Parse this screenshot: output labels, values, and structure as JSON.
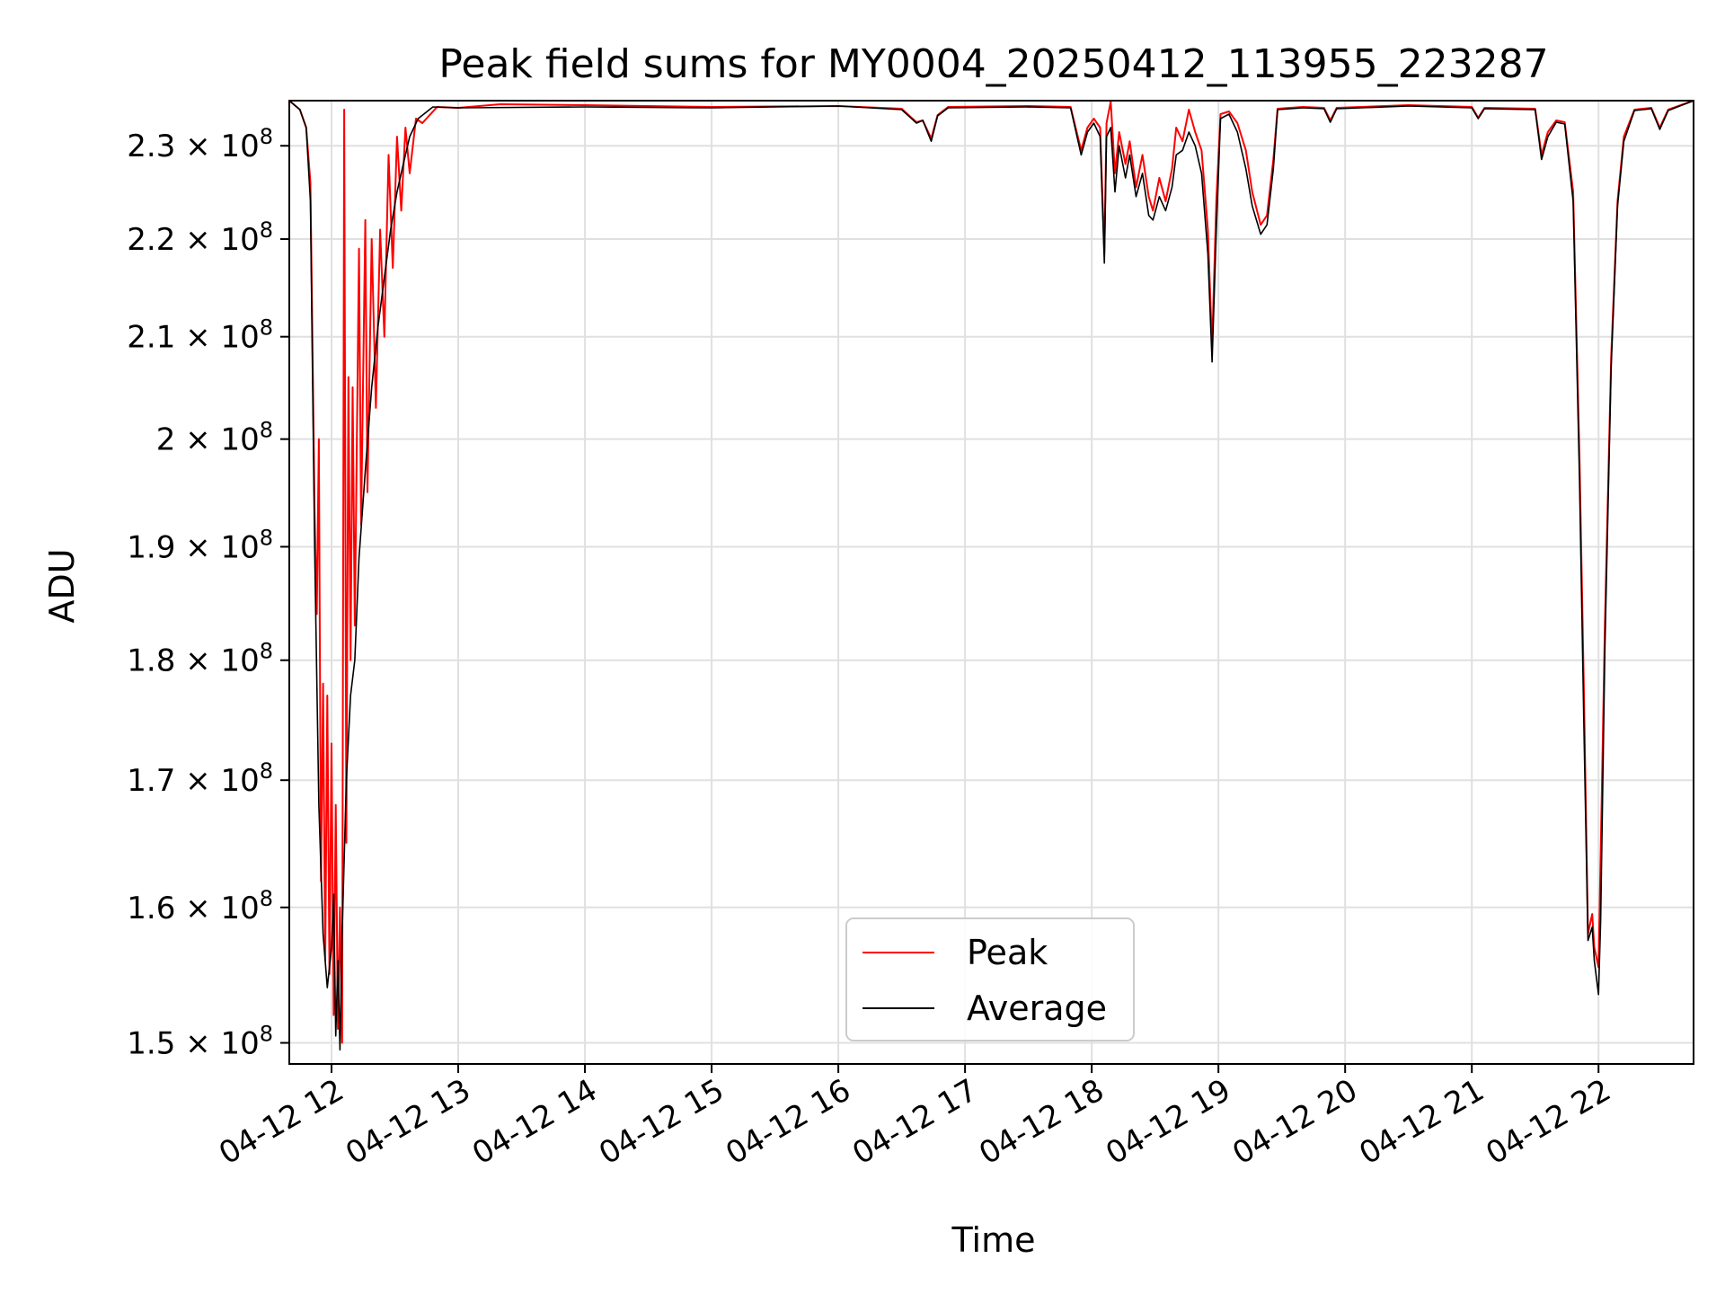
{
  "chart_data": {
    "type": "line",
    "title": "Peak field sums for MY0004_20250412_113955_223287",
    "xlabel": "Time",
    "ylabel": "ADU",
    "yscale": "log",
    "xlim": [
      "2025-04-12 11:40",
      "2025-04-12 22:45"
    ],
    "ylim": [
      148500000,
      235000000
    ],
    "x_ticks": [
      {
        "t": "2025-04-12 12:00",
        "label": "04-12 12"
      },
      {
        "t": "2025-04-12 13:00",
        "label": "04-12 13"
      },
      {
        "t": "2025-04-12 14:00",
        "label": "04-12 14"
      },
      {
        "t": "2025-04-12 15:00",
        "label": "04-12 15"
      },
      {
        "t": "2025-04-12 16:00",
        "label": "04-12 16"
      },
      {
        "t": "2025-04-12 17:00",
        "label": "04-12 17"
      },
      {
        "t": "2025-04-12 18:00",
        "label": "04-12 18"
      },
      {
        "t": "2025-04-12 19:00",
        "label": "04-12 19"
      },
      {
        "t": "2025-04-12 20:00",
        "label": "04-12 20"
      },
      {
        "t": "2025-04-12 21:00",
        "label": "04-12 21"
      },
      {
        "t": "2025-04-12 22:00",
        "label": "04-12 22"
      }
    ],
    "y_ticks": [
      {
        "v": 150000000,
        "mant": "1.5",
        "exp": "8"
      },
      {
        "v": 160000000,
        "mant": "1.6",
        "exp": "8"
      },
      {
        "v": 170000000,
        "mant": "1.7",
        "exp": "8"
      },
      {
        "v": 180000000,
        "mant": "1.8",
        "exp": "8"
      },
      {
        "v": 190000000,
        "mant": "1.9",
        "exp": "8"
      },
      {
        "v": 200000000,
        "mant": "2",
        "exp": "8"
      },
      {
        "v": 210000000,
        "mant": "2.1",
        "exp": "8"
      },
      {
        "v": 220000000,
        "mant": "2.2",
        "exp": "8"
      },
      {
        "v": 230000000,
        "mant": "2.3",
        "exp": "8"
      }
    ],
    "grid": true,
    "legend": {
      "position": "lower center"
    },
    "series": [
      {
        "name": "Peak",
        "color": "#ff0000",
        "points": [
          [
            "2025-04-12 11:40",
            235000000
          ],
          [
            "2025-04-12 11:45",
            234000000
          ],
          [
            "2025-04-12 11:48",
            232000000
          ],
          [
            "2025-04-12 11:50",
            226000000
          ],
          [
            "2025-04-12 11:52",
            193000000
          ],
          [
            "2025-04-12 11:53",
            184000000
          ],
          [
            "2025-04-12 11:54",
            200000000
          ],
          [
            "2025-04-12 11:55",
            162000000
          ],
          [
            "2025-04-12 11:56",
            178000000
          ],
          [
            "2025-04-12 11:57",
            156000000
          ],
          [
            "2025-04-12 11:58",
            177000000
          ],
          [
            "2025-04-12 11:59",
            155000000
          ],
          [
            "2025-04-12 12:00",
            173000000
          ],
          [
            "2025-04-12 12:01",
            152000000
          ],
          [
            "2025-04-12 12:02",
            168000000
          ],
          [
            "2025-04-12 12:03",
            151000000
          ],
          [
            "2025-04-12 12:04",
            160000000
          ],
          [
            "2025-04-12 12:05",
            150000000
          ],
          [
            "2025-04-12 12:06",
            234000000
          ],
          [
            "2025-04-12 12:07",
            165000000
          ],
          [
            "2025-04-12 12:08",
            206000000
          ],
          [
            "2025-04-12 12:09",
            180000000
          ],
          [
            "2025-04-12 12:10",
            205000000
          ],
          [
            "2025-04-12 12:11",
            183000000
          ],
          [
            "2025-04-12 12:13",
            219000000
          ],
          [
            "2025-04-12 12:14",
            192000000
          ],
          [
            "2025-04-12 12:16",
            222000000
          ],
          [
            "2025-04-12 12:17",
            195000000
          ],
          [
            "2025-04-12 12:19",
            220000000
          ],
          [
            "2025-04-12 12:21",
            203000000
          ],
          [
            "2025-04-12 12:23",
            221000000
          ],
          [
            "2025-04-12 12:25",
            210000000
          ],
          [
            "2025-04-12 12:27",
            229000000
          ],
          [
            "2025-04-12 12:29",
            217000000
          ],
          [
            "2025-04-12 12:31",
            231000000
          ],
          [
            "2025-04-12 12:33",
            223000000
          ],
          [
            "2025-04-12 12:35",
            232000000
          ],
          [
            "2025-04-12 12:37",
            227000000
          ],
          [
            "2025-04-12 12:40",
            233000000
          ],
          [
            "2025-04-12 12:43",
            232500000
          ],
          [
            "2025-04-12 12:50",
            234300000
          ],
          [
            "2025-04-12 13:00",
            234200000
          ],
          [
            "2025-04-12 13:20",
            234600000
          ],
          [
            "2025-04-12 14:00",
            234500000
          ],
          [
            "2025-04-12 15:00",
            234300000
          ],
          [
            "2025-04-12 16:00",
            234400000
          ],
          [
            "2025-04-12 16:30",
            234100000
          ],
          [
            "2025-04-12 16:37",
            232600000
          ],
          [
            "2025-04-12 16:40",
            232800000
          ],
          [
            "2025-04-12 16:44",
            230800000
          ],
          [
            "2025-04-12 16:47",
            233400000
          ],
          [
            "2025-04-12 16:52",
            234300000
          ],
          [
            "2025-04-12 17:30",
            234400000
          ],
          [
            "2025-04-12 17:50",
            234300000
          ],
          [
            "2025-04-12 17:55",
            229500000
          ],
          [
            "2025-04-12 17:58",
            232000000
          ],
          [
            "2025-04-12 18:01",
            233000000
          ],
          [
            "2025-04-12 18:04",
            232000000
          ],
          [
            "2025-04-12 18:06",
            218500000
          ],
          [
            "2025-04-12 18:07",
            232500000
          ],
          [
            "2025-04-12 18:09",
            234900000
          ],
          [
            "2025-04-12 18:11",
            227000000
          ],
          [
            "2025-04-12 18:13",
            231500000
          ],
          [
            "2025-04-12 18:16",
            228000000
          ],
          [
            "2025-04-12 18:18",
            230500000
          ],
          [
            "2025-04-12 18:21",
            225500000
          ],
          [
            "2025-04-12 18:24",
            229000000
          ],
          [
            "2025-04-12 18:27",
            224500000
          ],
          [
            "2025-04-12 18:29",
            223000000
          ],
          [
            "2025-04-12 18:32",
            226500000
          ],
          [
            "2025-04-12 18:35",
            224000000
          ],
          [
            "2025-04-12 18:38",
            227500000
          ],
          [
            "2025-04-12 18:40",
            232000000
          ],
          [
            "2025-04-12 18:43",
            230500000
          ],
          [
            "2025-04-12 18:46",
            234000000
          ],
          [
            "2025-04-12 18:49",
            231500000
          ],
          [
            "2025-04-12 18:52",
            229500000
          ],
          [
            "2025-04-12 18:55",
            221000000
          ],
          [
            "2025-04-12 18:57",
            209000000
          ],
          [
            "2025-04-12 18:59",
            224000000
          ],
          [
            "2025-04-12 19:01",
            233500000
          ],
          [
            "2025-04-12 19:05",
            233800000
          ],
          [
            "2025-04-12 19:09",
            232500000
          ],
          [
            "2025-04-12 19:13",
            229500000
          ],
          [
            "2025-04-12 19:16",
            225000000
          ],
          [
            "2025-04-12 19:20",
            221500000
          ],
          [
            "2025-04-12 19:23",
            222500000
          ],
          [
            "2025-04-12 19:26",
            228500000
          ],
          [
            "2025-04-12 19:28",
            234100000
          ],
          [
            "2025-04-12 19:40",
            234300000
          ],
          [
            "2025-04-12 19:50",
            234200000
          ],
          [
            "2025-04-12 19:53",
            232800000
          ],
          [
            "2025-04-12 19:56",
            234200000
          ],
          [
            "2025-04-12 20:30",
            234500000
          ],
          [
            "2025-04-12 21:00",
            234300000
          ],
          [
            "2025-04-12 21:03",
            233100000
          ],
          [
            "2025-04-12 21:06",
            234200000
          ],
          [
            "2025-04-12 21:30",
            234100000
          ],
          [
            "2025-04-12 21:33",
            229000000
          ],
          [
            "2025-04-12 21:36",
            231500000
          ],
          [
            "2025-04-12 21:40",
            232800000
          ],
          [
            "2025-04-12 21:44",
            232600000
          ],
          [
            "2025-04-12 21:48",
            225000000
          ],
          [
            "2025-04-12 21:51",
            198000000
          ],
          [
            "2025-04-12 21:53",
            178000000
          ],
          [
            "2025-04-12 21:55",
            158000000
          ],
          [
            "2025-04-12 21:57",
            159500000
          ],
          [
            "2025-04-12 21:58",
            157000000
          ],
          [
            "2025-04-12 22:00",
            155500000
          ],
          [
            "2025-04-12 22:01",
            164000000
          ],
          [
            "2025-04-12 22:03",
            183000000
          ],
          [
            "2025-04-12 22:06",
            208000000
          ],
          [
            "2025-04-12 22:09",
            224000000
          ],
          [
            "2025-04-12 22:12",
            231000000
          ],
          [
            "2025-04-12 22:17",
            234000000
          ],
          [
            "2025-04-12 22:25",
            234200000
          ],
          [
            "2025-04-12 22:29",
            232000000
          ],
          [
            "2025-04-12 22:33",
            234000000
          ],
          [
            "2025-04-12 22:45",
            235000000
          ]
        ]
      },
      {
        "name": "Average",
        "color": "#000000",
        "points": [
          [
            "2025-04-12 11:40",
            235000000
          ],
          [
            "2025-04-12 11:45",
            234000000
          ],
          [
            "2025-04-12 11:48",
            232000000
          ],
          [
            "2025-04-12 11:50",
            224000000
          ],
          [
            "2025-04-12 11:52",
            190000000
          ],
          [
            "2025-04-12 11:54",
            168000000
          ],
          [
            "2025-04-12 11:56",
            158000000
          ],
          [
            "2025-04-12 11:58",
            154000000
          ],
          [
            "2025-04-12 12:00",
            157000000
          ],
          [
            "2025-04-12 12:01",
            161000000
          ],
          [
            "2025-04-12 12:02",
            150500000
          ],
          [
            "2025-04-12 12:03",
            156000000
          ],
          [
            "2025-04-12 12:04",
            149500000
          ],
          [
            "2025-04-12 12:05",
            158000000
          ],
          [
            "2025-04-12 12:07",
            170000000
          ],
          [
            "2025-04-12 12:09",
            177000000
          ],
          [
            "2025-04-12 12:11",
            180000000
          ],
          [
            "2025-04-12 12:13",
            189000000
          ],
          [
            "2025-04-12 12:16",
            197000000
          ],
          [
            "2025-04-12 12:19",
            205000000
          ],
          [
            "2025-04-12 12:22",
            211000000
          ],
          [
            "2025-04-12 12:25",
            216000000
          ],
          [
            "2025-04-12 12:28",
            221000000
          ],
          [
            "2025-04-12 12:31",
            225000000
          ],
          [
            "2025-04-12 12:34",
            228000000
          ],
          [
            "2025-04-12 12:37",
            231000000
          ],
          [
            "2025-04-12 12:41",
            233000000
          ],
          [
            "2025-04-12 12:48",
            234300000
          ],
          [
            "2025-04-12 13:00",
            234200000
          ],
          [
            "2025-04-12 14:00",
            234300000
          ],
          [
            "2025-04-12 15:00",
            234200000
          ],
          [
            "2025-04-12 16:00",
            234400000
          ],
          [
            "2025-04-12 16:30",
            234000000
          ],
          [
            "2025-04-12 16:37",
            232500000
          ],
          [
            "2025-04-12 16:40",
            232800000
          ],
          [
            "2025-04-12 16:44",
            230500000
          ],
          [
            "2025-04-12 16:47",
            233300000
          ],
          [
            "2025-04-12 16:52",
            234200000
          ],
          [
            "2025-04-12 17:30",
            234300000
          ],
          [
            "2025-04-12 17:50",
            234200000
          ],
          [
            "2025-04-12 17:55",
            229000000
          ],
          [
            "2025-04-12 17:58",
            231500000
          ],
          [
            "2025-04-12 18:01",
            232500000
          ],
          [
            "2025-04-12 18:04",
            231000000
          ],
          [
            "2025-04-12 18:06",
            217500000
          ],
          [
            "2025-04-12 18:07",
            231000000
          ],
          [
            "2025-04-12 18:09",
            232000000
          ],
          [
            "2025-04-12 18:11",
            225000000
          ],
          [
            "2025-04-12 18:13",
            230000000
          ],
          [
            "2025-04-12 18:16",
            226500000
          ],
          [
            "2025-04-12 18:18",
            229000000
          ],
          [
            "2025-04-12 18:21",
            224500000
          ],
          [
            "2025-04-12 18:24",
            227000000
          ],
          [
            "2025-04-12 18:27",
            222500000
          ],
          [
            "2025-04-12 18:29",
            222000000
          ],
          [
            "2025-04-12 18:32",
            224500000
          ],
          [
            "2025-04-12 18:35",
            223000000
          ],
          [
            "2025-04-12 18:38",
            225500000
          ],
          [
            "2025-04-12 18:40",
            229000000
          ],
          [
            "2025-04-12 18:43",
            229500000
          ],
          [
            "2025-04-12 18:46",
            231500000
          ],
          [
            "2025-04-12 18:49",
            230000000
          ],
          [
            "2025-04-12 18:52",
            227000000
          ],
          [
            "2025-04-12 18:55",
            218500000
          ],
          [
            "2025-04-12 18:57",
            207500000
          ],
          [
            "2025-04-12 18:59",
            221000000
          ],
          [
            "2025-04-12 19:01",
            233000000
          ],
          [
            "2025-04-12 19:05",
            233500000
          ],
          [
            "2025-04-12 19:09",
            231500000
          ],
          [
            "2025-04-12 19:13",
            227500000
          ],
          [
            "2025-04-12 19:16",
            223500000
          ],
          [
            "2025-04-12 19:20",
            220500000
          ],
          [
            "2025-04-12 19:23",
            221500000
          ],
          [
            "2025-04-12 19:26",
            227500000
          ],
          [
            "2025-04-12 19:28",
            234000000
          ],
          [
            "2025-04-12 19:40",
            234200000
          ],
          [
            "2025-04-12 19:50",
            234100000
          ],
          [
            "2025-04-12 19:53",
            232600000
          ],
          [
            "2025-04-12 19:56",
            234100000
          ],
          [
            "2025-04-12 20:30",
            234400000
          ],
          [
            "2025-04-12 21:00",
            234200000
          ],
          [
            "2025-04-12 21:03",
            233000000
          ],
          [
            "2025-04-12 21:06",
            234100000
          ],
          [
            "2025-04-12 21:30",
            234000000
          ],
          [
            "2025-04-12 21:33",
            228500000
          ],
          [
            "2025-04-12 21:36",
            231000000
          ],
          [
            "2025-04-12 21:40",
            232600000
          ],
          [
            "2025-04-12 21:44",
            232400000
          ],
          [
            "2025-04-12 21:48",
            224000000
          ],
          [
            "2025-04-12 21:51",
            196000000
          ],
          [
            "2025-04-12 21:53",
            175000000
          ],
          [
            "2025-04-12 21:55",
            157500000
          ],
          [
            "2025-04-12 21:57",
            158500000
          ],
          [
            "2025-04-12 21:58",
            156000000
          ],
          [
            "2025-04-12 22:00",
            153500000
          ],
          [
            "2025-04-12 22:01",
            159000000
          ],
          [
            "2025-04-12 22:03",
            181000000
          ],
          [
            "2025-04-12 22:06",
            207000000
          ],
          [
            "2025-04-12 22:09",
            223500000
          ],
          [
            "2025-04-12 22:12",
            230500000
          ],
          [
            "2025-04-12 22:17",
            233900000
          ],
          [
            "2025-04-12 22:25",
            234100000
          ],
          [
            "2025-04-12 22:29",
            231800000
          ],
          [
            "2025-04-12 22:33",
            233900000
          ],
          [
            "2025-04-12 22:45",
            235000000
          ]
        ]
      }
    ]
  }
}
